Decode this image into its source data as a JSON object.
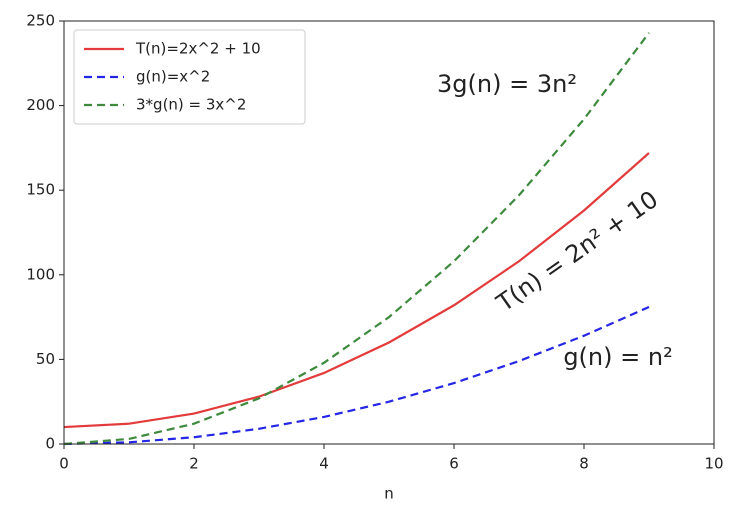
{
  "chart_data": {
    "type": "line",
    "x": [
      0,
      1,
      2,
      3,
      4,
      5,
      6,
      7,
      8,
      9
    ],
    "series": [
      {
        "name": "T(n)=2x^2 + 10",
        "color": "#e33b3b",
        "linestyle": "solid",
        "values": [
          10,
          12,
          18,
          28,
          42,
          60,
          82,
          108,
          138,
          172
        ]
      },
      {
        "name": "g(n)=x^2",
        "color": "#2626e6",
        "linestyle": "dashed",
        "values": [
          0,
          1,
          4,
          9,
          16,
          25,
          36,
          49,
          64,
          81
        ]
      },
      {
        "name": "3*g(n) = 3x^2",
        "color": "#3d8a3d",
        "linestyle": "dashed",
        "values": [
          0,
          3,
          12,
          27,
          48,
          75,
          108,
          147,
          192,
          243
        ]
      }
    ],
    "xlabel": "n",
    "xlim": [
      0,
      10
    ],
    "xticks": [
      0,
      2,
      4,
      6,
      8,
      10
    ],
    "ylim": [
      0,
      250
    ],
    "yticks": [
      0,
      50,
      100,
      150,
      200,
      250
    ],
    "legend": "upper left",
    "annotations": [
      {
        "text": "3g(n) = 3n²",
        "color": "#43a047"
      },
      {
        "text": "T(n) = 2n² + 10",
        "color": "#c4566e"
      },
      {
        "text": "g(n) = n²",
        "color": "#2457c0"
      }
    ]
  }
}
